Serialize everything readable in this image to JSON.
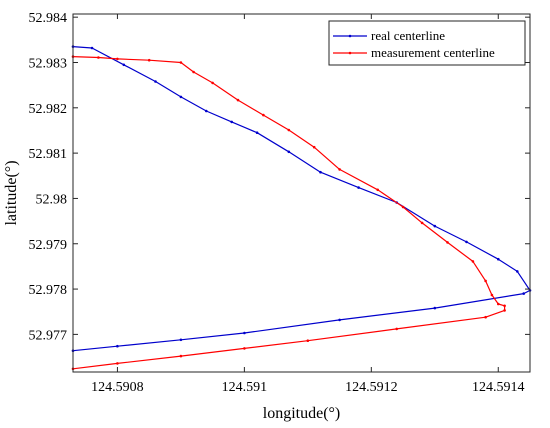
{
  "chart_data": {
    "type": "line",
    "xlabel": "longitude(°)",
    "ylabel": "latitude(°)",
    "xlim": [
      124.59073,
      124.59145
    ],
    "ylim": [
      52.97617,
      52.98407
    ],
    "xticks": [
      124.5908,
      124.591,
      124.5912,
      124.5914
    ],
    "xtick_labels": [
      "124.5908",
      "124.591",
      "124.5912",
      "124.5914"
    ],
    "yticks": [
      52.977,
      52.978,
      52.979,
      52.98,
      52.981,
      52.982,
      52.983,
      52.984
    ],
    "ytick_labels": [
      "52.977",
      "52.978",
      "52.979",
      "52.98",
      "52.981",
      "52.982",
      "52.983",
      "52.984"
    ],
    "grid": false,
    "legend": "top-right",
    "series": [
      {
        "name": "real centerline",
        "color": "#0000cc",
        "x": [
          124.59073,
          124.59076,
          124.59081,
          124.59086,
          124.5909,
          124.59094,
          124.59098,
          124.59102,
          124.59107,
          124.59112,
          124.59118,
          124.59124,
          124.5913,
          124.59135,
          124.5914,
          124.59143,
          124.59145,
          124.59144,
          124.5913,
          124.59115,
          124.591,
          124.5909,
          124.5908,
          124.59073
        ],
        "y": [
          52.98335,
          52.98332,
          52.98295,
          52.98258,
          52.98224,
          52.98193,
          52.98169,
          52.98145,
          52.98103,
          52.98058,
          52.98024,
          52.97991,
          52.97939,
          52.97904,
          52.97866,
          52.97839,
          52.97797,
          52.9779,
          52.97758,
          52.97732,
          52.97703,
          52.97688,
          52.97674,
          52.97664
        ]
      },
      {
        "name": "measurement centerline",
        "color": "#ff0000",
        "x": [
          124.59073,
          124.59077,
          124.5908,
          124.59085,
          124.5909,
          124.59092,
          124.59095,
          124.59099,
          124.59103,
          124.59107,
          124.59111,
          124.59115,
          124.59121,
          124.59125,
          124.59128,
          124.59132,
          124.59136,
          124.59138,
          124.59139,
          124.5914,
          124.59141,
          124.59141,
          124.59138,
          124.59124,
          124.5911,
          124.591,
          124.5909,
          124.5908,
          124.59073
        ],
        "y": [
          52.98313,
          52.98311,
          52.98308,
          52.98305,
          52.983,
          52.98279,
          52.98255,
          52.98217,
          52.98184,
          52.98151,
          52.98113,
          52.98064,
          52.98019,
          52.97981,
          52.97946,
          52.97903,
          52.97861,
          52.97818,
          52.97787,
          52.97767,
          52.97763,
          52.97753,
          52.97738,
          52.97712,
          52.97686,
          52.97669,
          52.97652,
          52.97636,
          52.97624
        ]
      }
    ]
  }
}
